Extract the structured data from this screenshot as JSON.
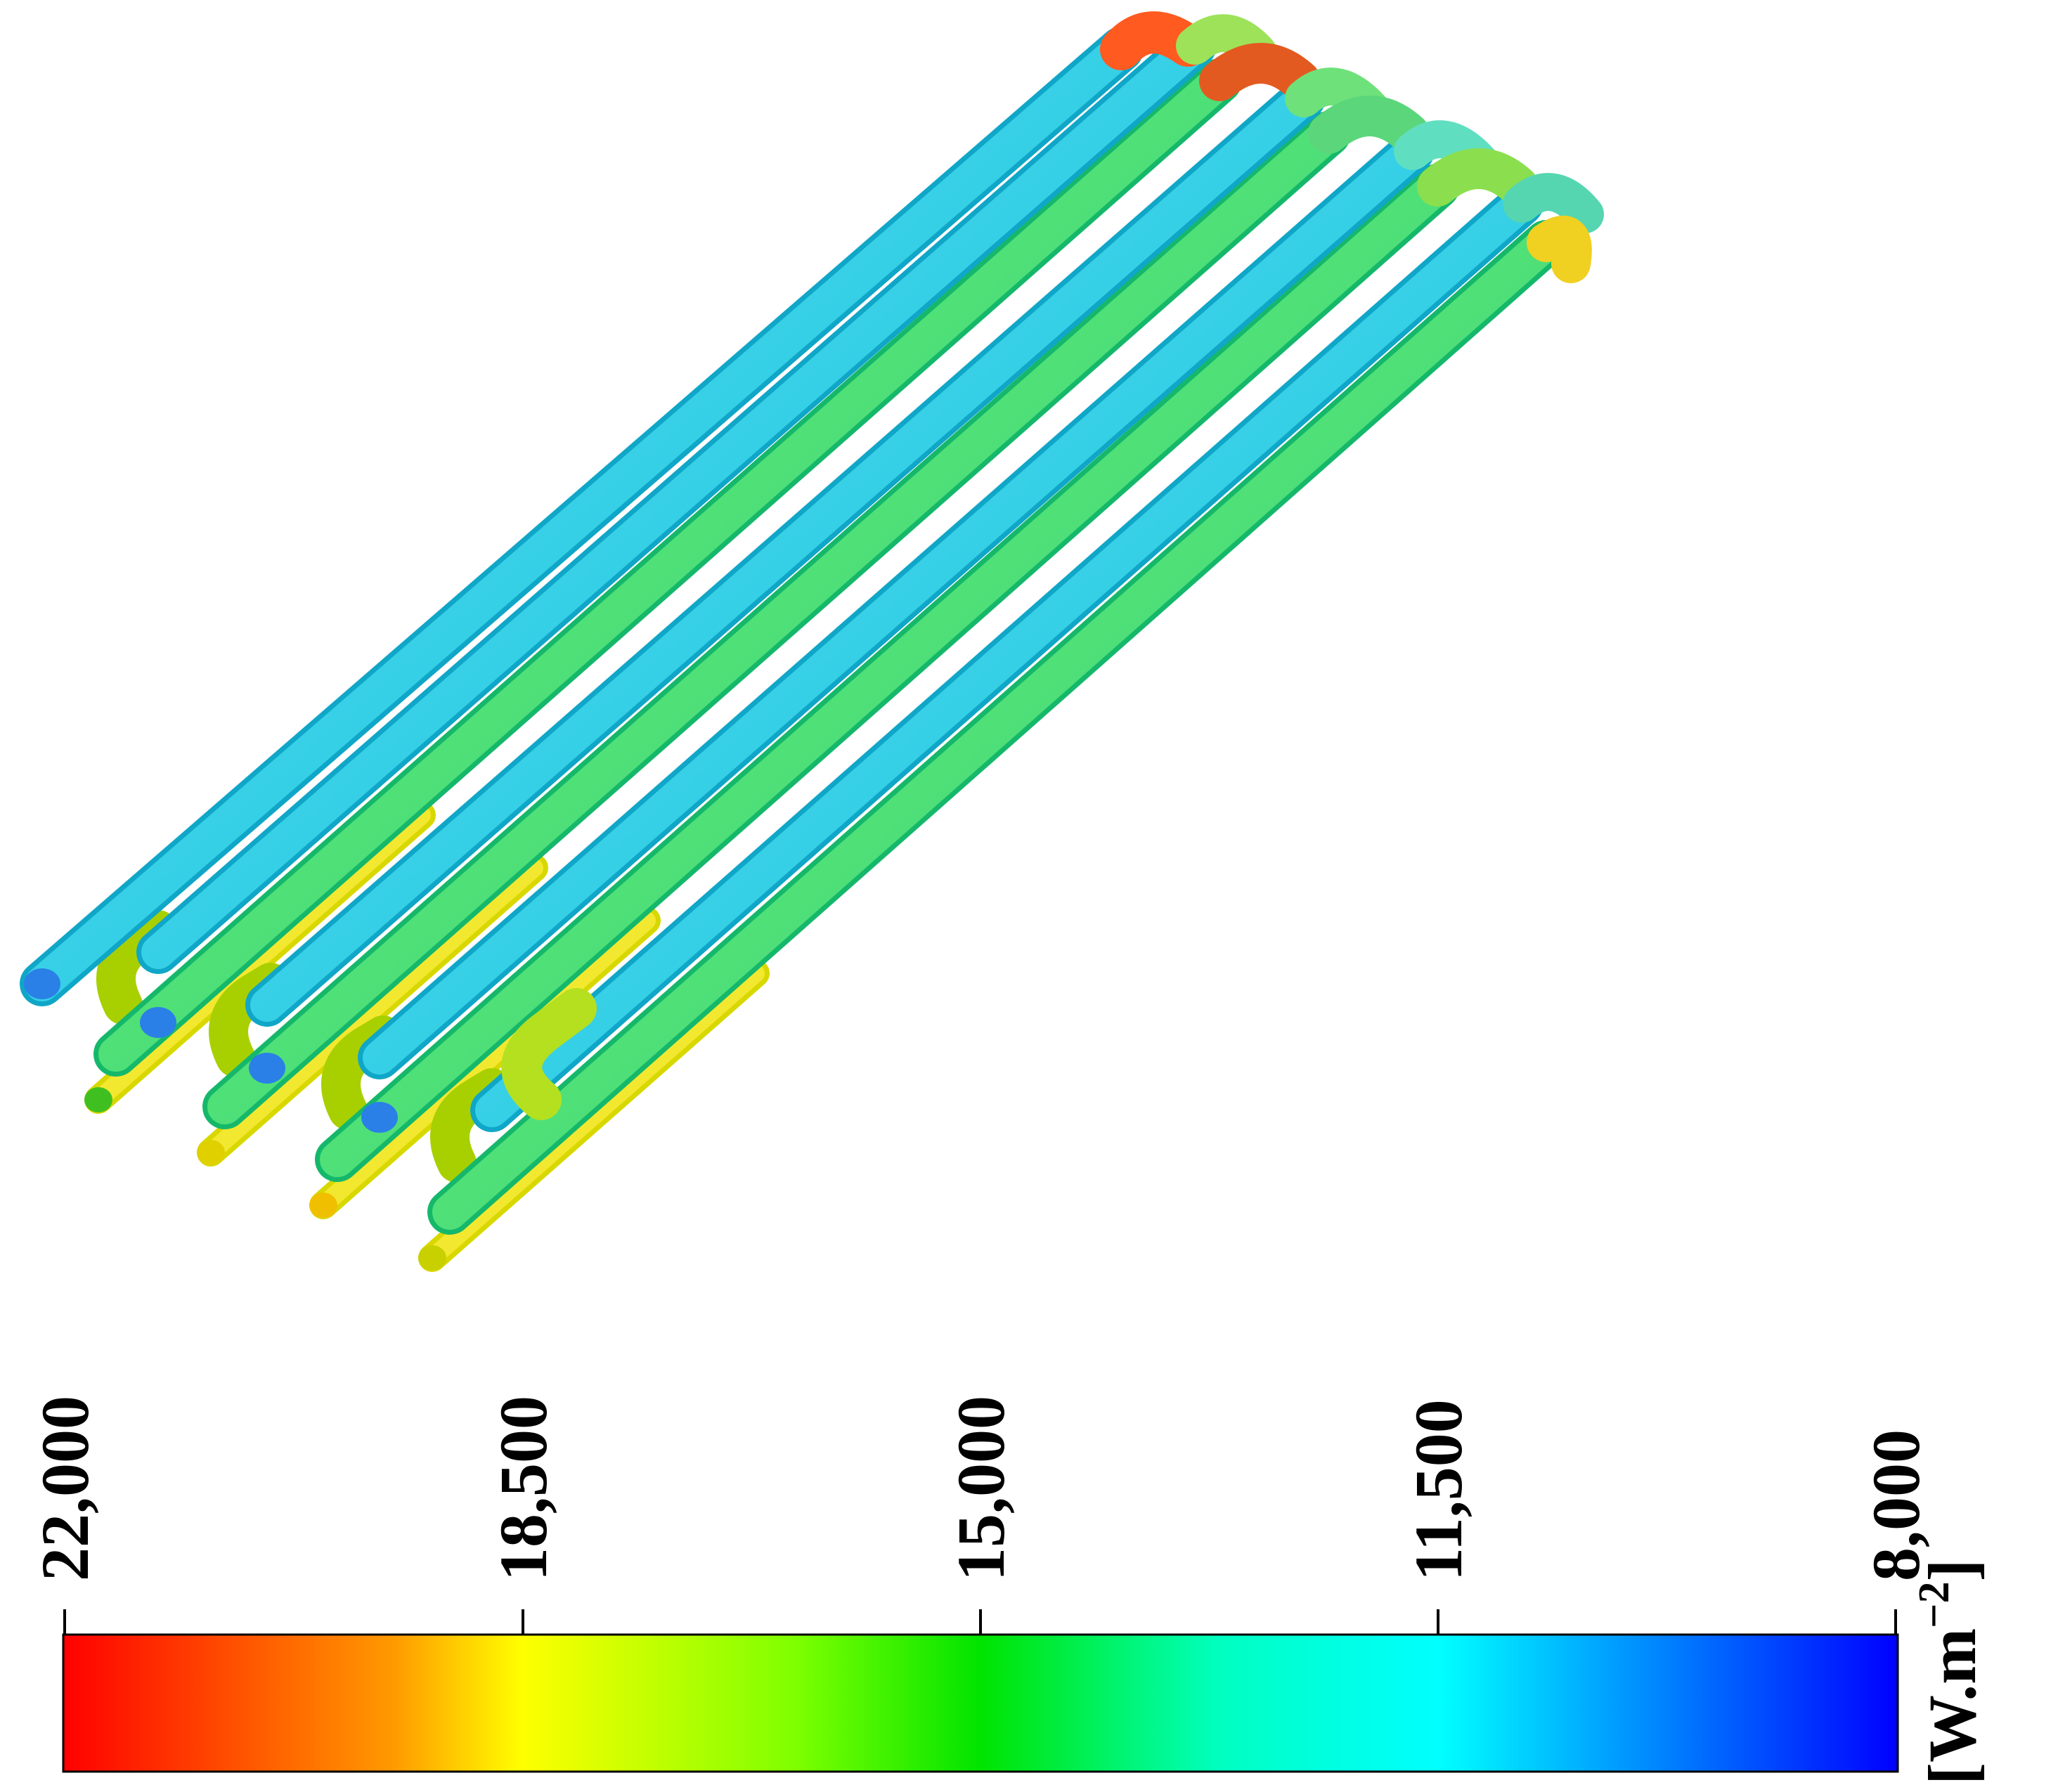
{
  "colorbar": {
    "ticks": [
      "22,000",
      "18,500",
      "15,000",
      "11,500",
      "8,000"
    ],
    "unit_base": "[W.m",
    "unit_exp": "−2",
    "unit_close": "]",
    "range": [
      8000,
      22000
    ],
    "colors": [
      "#ff0000",
      "#ff9a00",
      "#ffff00",
      "#00e400",
      "#00ffc0",
      "#00ffff",
      "#0000ff"
    ]
  },
  "tube_colors": {
    "cool": "#2ad7e6",
    "mid": "#3be08a",
    "warm": "#c8e832",
    "hot": "#f2d800",
    "bend_hot": "#ff4a1a",
    "end_blue": "#1e7be0"
  }
}
